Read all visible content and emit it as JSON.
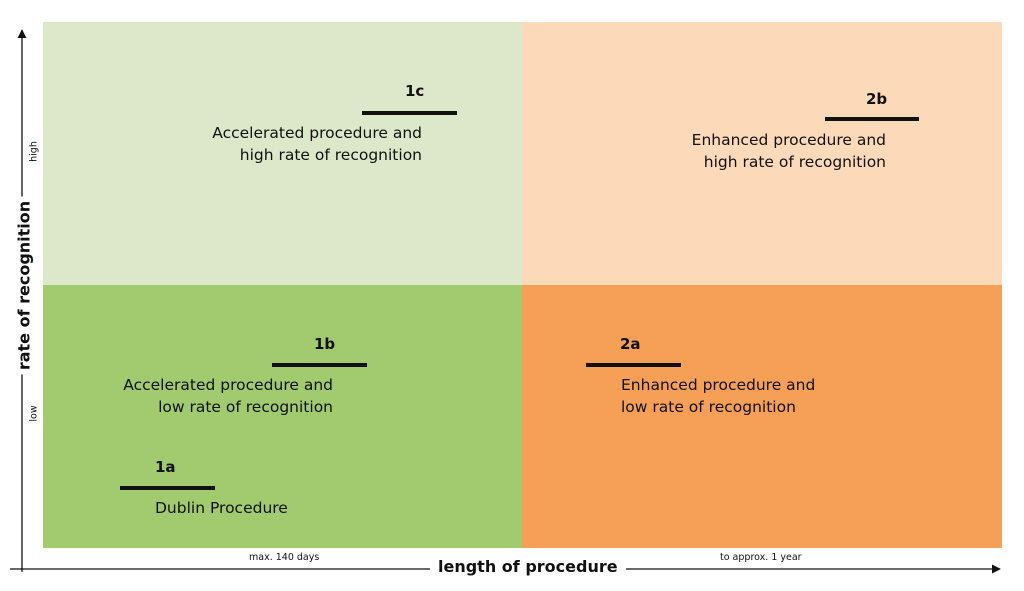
{
  "colors": {
    "top_left": "#dde8cb",
    "top_right": "#fcd9b9",
    "bottom_left": "#a2ca6e",
    "bottom_right": "#f6a057"
  },
  "axes": {
    "y_title": "rate of recognition",
    "y_tick_high": "high",
    "y_tick_low": "low",
    "x_title": "length of procedure",
    "x_tick_left": "max. 140 days",
    "x_tick_right": "to approx. 1 year"
  },
  "quadrants": {
    "q1c": {
      "code": "1c",
      "line1": "Accelerated procedure and",
      "line2": "high rate of recognition"
    },
    "q2b": {
      "code": "2b",
      "line1": "Enhanced procedure and",
      "line2": "high rate of recognition"
    },
    "q1b": {
      "code": "1b",
      "line1": "Accelerated procedure and",
      "line2": "low rate of recognition"
    },
    "q2a": {
      "code": "2a",
      "line1": "Enhanced procedure and",
      "line2": "low rate of recognition"
    },
    "q1a": {
      "code": "1a",
      "line1": "Dublin Procedure"
    }
  }
}
